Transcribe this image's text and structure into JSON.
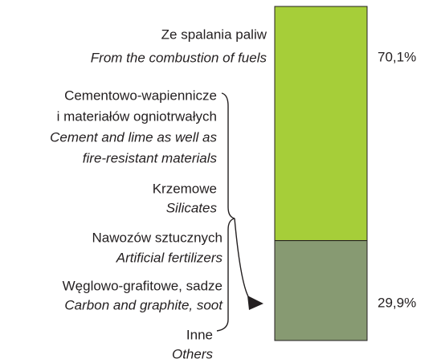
{
  "chart_data": {
    "type": "stacked_bar",
    "series": [
      {
        "color": "#a6ce39",
        "values": [
          70.1
        ],
        "value_labels": [
          "70,1%"
        ],
        "items": [
          {
            "pl": [
              "Ze spalania paliw"
            ],
            "en": [
              "From the combustion of fuels"
            ]
          }
        ]
      },
      {
        "color": "#879a72",
        "values": [
          29.9
        ],
        "value_labels": [
          "29,9%"
        ],
        "items": [
          {
            "pl": [
              "Cementowo-wapiennicze",
              "i materiałów ogniotrwałych"
            ],
            "en": [
              "Cement and lime as well as",
              "fire-resistant materials"
            ]
          },
          {
            "pl": [
              "Krzemowe"
            ],
            "en": [
              "Silicates"
            ]
          },
          {
            "pl": [
              "Nawozów sztucznych"
            ],
            "en": [
              "Artificial fertilizers"
            ]
          },
          {
            "pl": [
              "Węglowo-grafitowe, sadze"
            ],
            "en": [
              "Carbon and graphite, soot"
            ]
          },
          {
            "pl": [
              "Inne"
            ],
            "en": [
              "Others"
            ]
          }
        ]
      }
    ]
  }
}
